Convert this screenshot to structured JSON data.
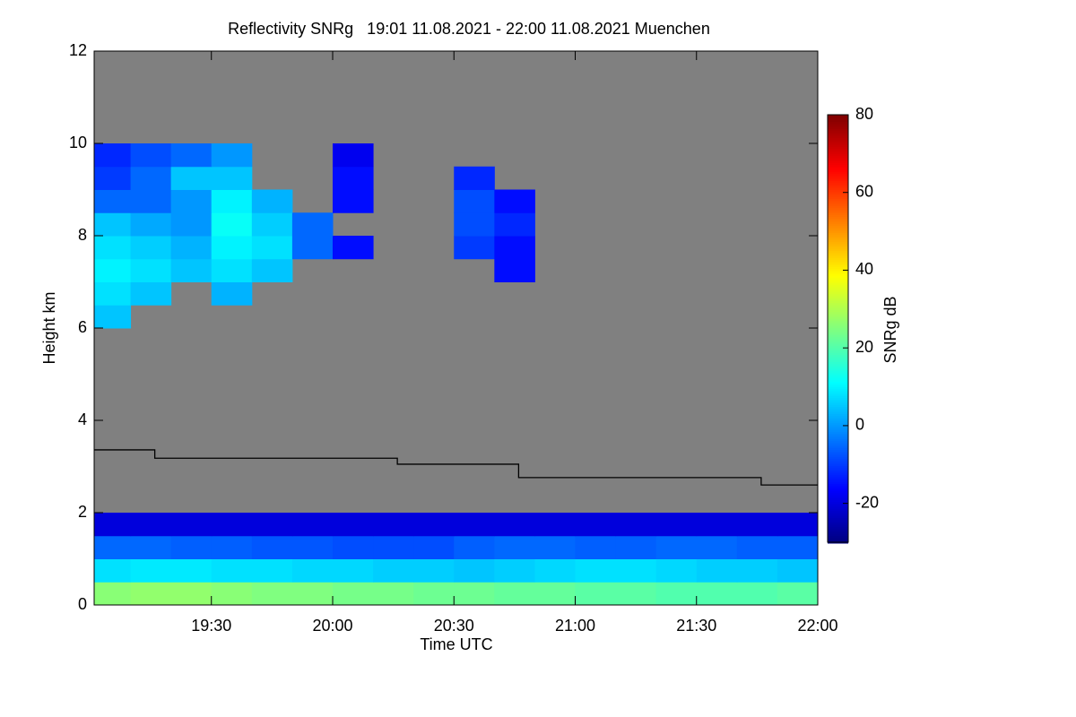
{
  "chart_data": {
    "type": "heatmap",
    "title": "Reflectivity SNRg   19:01 11.08.2021 - 22:00 11.08.2021 Muenchen",
    "x_label": "Time UTC",
    "y_label": "Height km",
    "colorbar_label": "SNRg dB",
    "xlim": [
      19.0167,
      22.0
    ],
    "xticks": [
      {
        "value": 19.5,
        "label": "19:30"
      },
      {
        "value": 20.0,
        "label": "20:00"
      },
      {
        "value": 20.5,
        "label": "20:30"
      },
      {
        "value": 21.0,
        "label": "21:00"
      },
      {
        "value": 21.5,
        "label": "21:30"
      },
      {
        "value": 22.0,
        "label": "22:00"
      }
    ],
    "ylim": [
      0,
      12
    ],
    "yticks": [
      0,
      2,
      4,
      6,
      8,
      10,
      12
    ],
    "zlim": [
      -30,
      80
    ],
    "zticks": [
      -20,
      0,
      20,
      40,
      60,
      80
    ],
    "colormap": "jet",
    "background": "#808080",
    "xbins": [
      19.0167,
      19.1667,
      19.3333,
      19.5,
      19.6667,
      19.8333,
      20.0,
      20.1667,
      20.3333,
      20.5,
      20.6667,
      20.8333,
      21.0,
      21.1667,
      21.3333,
      21.5,
      21.6667,
      21.8333,
      22.0
    ],
    "ybins": [
      0,
      0.5,
      1,
      1.5,
      2,
      2.5,
      3,
      3.5,
      4,
      4.5,
      5,
      5.5,
      6,
      6.5,
      7,
      7.5,
      8,
      8.5,
      9,
      9.5,
      10,
      10.5,
      11,
      11.5,
      12
    ],
    "z": [
      [
        26,
        27,
        27,
        26,
        25,
        25,
        24,
        24,
        23,
        23,
        22,
        22,
        21,
        21,
        20,
        20,
        20,
        21
      ],
      [
        8,
        9,
        9,
        8,
        8,
        7,
        7,
        6,
        6,
        5,
        6,
        7,
        8,
        8,
        7,
        6,
        6,
        5
      ],
      [
        -5,
        -5,
        -6,
        -6,
        -7,
        -7,
        -8,
        -8,
        -8,
        -6,
        -5,
        -5,
        -6,
        -6,
        -5,
        -5,
        -6,
        -6
      ],
      [
        -20,
        -20,
        -20,
        -20,
        -20,
        -20,
        -20,
        -20,
        -20,
        -20,
        -20,
        -20,
        -20,
        -20,
        -20,
        -20,
        -20,
        -20
      ],
      [
        null,
        null,
        null,
        null,
        null,
        null,
        null,
        null,
        null,
        null,
        null,
        null,
        null,
        null,
        null,
        null,
        null,
        null
      ],
      [
        null,
        null,
        null,
        null,
        null,
        null,
        null,
        null,
        null,
        null,
        null,
        null,
        null,
        null,
        null,
        null,
        null,
        null
      ],
      [
        null,
        null,
        null,
        null,
        null,
        null,
        null,
        null,
        null,
        null,
        null,
        null,
        null,
        null,
        null,
        null,
        null,
        null
      ],
      [
        null,
        null,
        null,
        null,
        null,
        null,
        null,
        null,
        null,
        null,
        null,
        null,
        null,
        null,
        null,
        null,
        null,
        null
      ],
      [
        null,
        null,
        null,
        null,
        null,
        null,
        null,
        null,
        null,
        null,
        null,
        null,
        null,
        null,
        null,
        null,
        null,
        null
      ],
      [
        null,
        null,
        null,
        null,
        null,
        null,
        null,
        null,
        null,
        null,
        null,
        null,
        null,
        null,
        null,
        null,
        null,
        null
      ],
      [
        null,
        null,
        null,
        null,
        null,
        null,
        null,
        null,
        null,
        null,
        null,
        null,
        null,
        null,
        null,
        null,
        null,
        null
      ],
      [
        null,
        null,
        null,
        null,
        null,
        null,
        null,
        null,
        null,
        null,
        null,
        null,
        null,
        null,
        null,
        null,
        null,
        null
      ],
      [
        5,
        null,
        null,
        null,
        null,
        null,
        null,
        null,
        null,
        null,
        null,
        null,
        null,
        null,
        null,
        null,
        null,
        null
      ],
      [
        8,
        5,
        null,
        3,
        null,
        null,
        null,
        null,
        null,
        null,
        null,
        null,
        null,
        null,
        null,
        null,
        null,
        null
      ],
      [
        10,
        8,
        5,
        8,
        5,
        null,
        null,
        null,
        null,
        null,
        -15,
        null,
        null,
        null,
        null,
        null,
        null,
        null
      ],
      [
        8,
        6,
        3,
        10,
        8,
        -5,
        -15,
        null,
        null,
        -10,
        -15,
        null,
        null,
        null,
        null,
        null,
        null,
        null
      ],
      [
        5,
        2,
        0,
        12,
        6,
        -5,
        null,
        null,
        null,
        -8,
        -12,
        null,
        null,
        null,
        null,
        null,
        null,
        null
      ],
      [
        -5,
        -5,
        0,
        10,
        3,
        null,
        -15,
        null,
        null,
        -8,
        -15,
        null,
        null,
        null,
        null,
        null,
        null,
        null
      ],
      [
        -10,
        -5,
        5,
        5,
        null,
        null,
        -15,
        null,
        null,
        -12,
        null,
        null,
        null,
        null,
        null,
        null,
        null,
        null
      ],
      [
        -12,
        -8,
        -5,
        0,
        null,
        null,
        -18,
        null,
        null,
        null,
        null,
        null,
        null,
        null,
        null,
        null,
        null,
        null
      ],
      [
        null,
        null,
        null,
        null,
        null,
        null,
        null,
        null,
        null,
        null,
        null,
        null,
        null,
        null,
        null,
        null,
        null,
        null
      ],
      [
        null,
        null,
        null,
        null,
        null,
        null,
        null,
        null,
        null,
        null,
        null,
        null,
        null,
        null,
        null,
        null,
        null,
        null
      ],
      [
        null,
        null,
        null,
        null,
        null,
        null,
        null,
        null,
        null,
        null,
        null,
        null,
        null,
        null,
        null,
        null,
        null,
        null
      ],
      [
        null,
        null,
        null,
        null,
        null,
        null,
        null,
        null,
        null,
        null,
        null,
        null,
        null,
        null,
        null,
        null,
        null,
        null
      ]
    ],
    "line": {
      "color": "#000000",
      "x": [
        19.0167,
        19.2667,
        19.2667,
        20.2667,
        20.2667,
        20.7667,
        20.7667,
        21.7667,
        21.7667,
        22.0
      ],
      "values": [
        3.36,
        3.36,
        3.18,
        3.18,
        3.05,
        3.05,
        2.76,
        2.76,
        2.6,
        2.6
      ]
    }
  }
}
